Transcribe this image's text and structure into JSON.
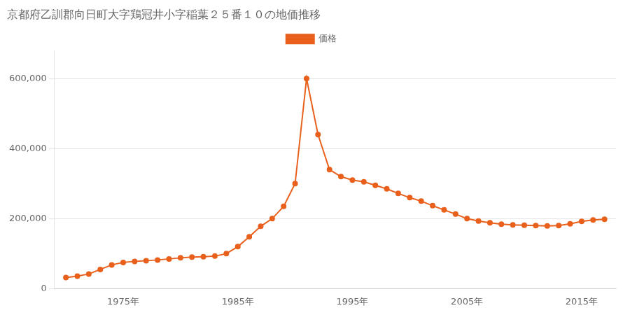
{
  "chart_data": {
    "type": "line",
    "title": "京都府乙訓郡向日町大字鶏冠井小字稲葉２５番１０の地価推移",
    "legend": "top",
    "grid": "y",
    "x": [
      1970,
      1971,
      1972,
      1973,
      1974,
      1975,
      1976,
      1977,
      1978,
      1979,
      1980,
      1981,
      1982,
      1983,
      1984,
      1985,
      1986,
      1987,
      1988,
      1989,
      1990,
      1991,
      1992,
      1993,
      1994,
      1995,
      1996,
      1997,
      1998,
      1999,
      2000,
      2001,
      2002,
      2003,
      2004,
      2005,
      2006,
      2007,
      2008,
      2009,
      2010,
      2011,
      2012,
      2013,
      2014,
      2015,
      2016,
      2017
    ],
    "series": [
      {
        "name": "価格",
        "color": "#e8601c",
        "marker": "circle",
        "values": [
          32000,
          36000,
          42000,
          55000,
          68000,
          75000,
          78000,
          80000,
          82000,
          85000,
          88000,
          90000,
          91000,
          93000,
          100000,
          120000,
          148000,
          178000,
          200000,
          235000,
          300000,
          600000,
          440000,
          340000,
          320000,
          310000,
          305000,
          295000,
          285000,
          272000,
          260000,
          250000,
          237000,
          225000,
          213000,
          200000,
          193000,
          188000,
          184000,
          182000,
          181000,
          180000,
          179000,
          180000,
          185000,
          192000,
          196000,
          198000
        ]
      }
    ],
    "xlim": [
      1969,
      2018
    ],
    "xticks": [
      {
        "value": 1975,
        "label": "1975年"
      },
      {
        "value": 1985,
        "label": "1985年"
      },
      {
        "value": 1995,
        "label": "1995年"
      },
      {
        "value": 2005,
        "label": "2005年"
      },
      {
        "value": 2015,
        "label": "2015年"
      }
    ],
    "ylim": [
      0,
      680000
    ],
    "yticks": [
      0,
      {
        "value": 200000,
        "label": "200,000"
      },
      {
        "value": 400000,
        "label": "400,000"
      },
      {
        "value": 600000,
        "label": "600,000"
      }
    ]
  }
}
